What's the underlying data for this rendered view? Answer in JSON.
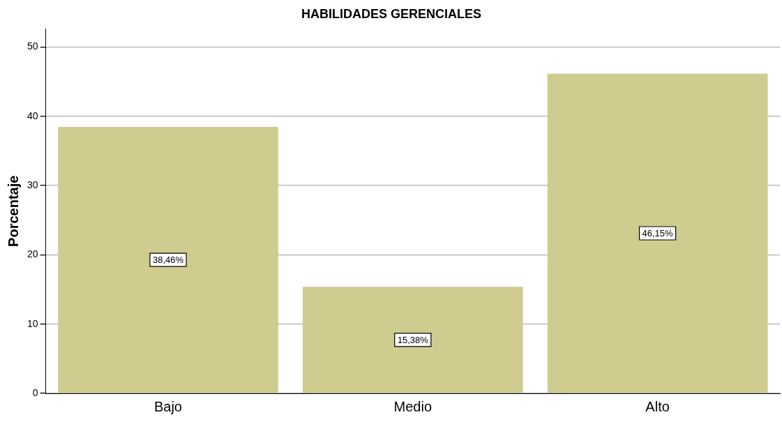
{
  "chart_data": {
    "type": "bar",
    "title": "HABILIDADES GERENCIALES",
    "ylabel": "Porcentaje",
    "categories": [
      "Bajo",
      "Medio",
      "Alto"
    ],
    "values": [
      38.46,
      15.38,
      46.15
    ],
    "value_labels": [
      "38,46%",
      "15,38%",
      "46,15%"
    ],
    "color": "#d0cb8f",
    "ylim": [
      0,
      52.6
    ],
    "yticks": [
      0,
      10,
      20,
      30,
      40,
      50
    ],
    "grid": "y",
    "legend": false
  }
}
